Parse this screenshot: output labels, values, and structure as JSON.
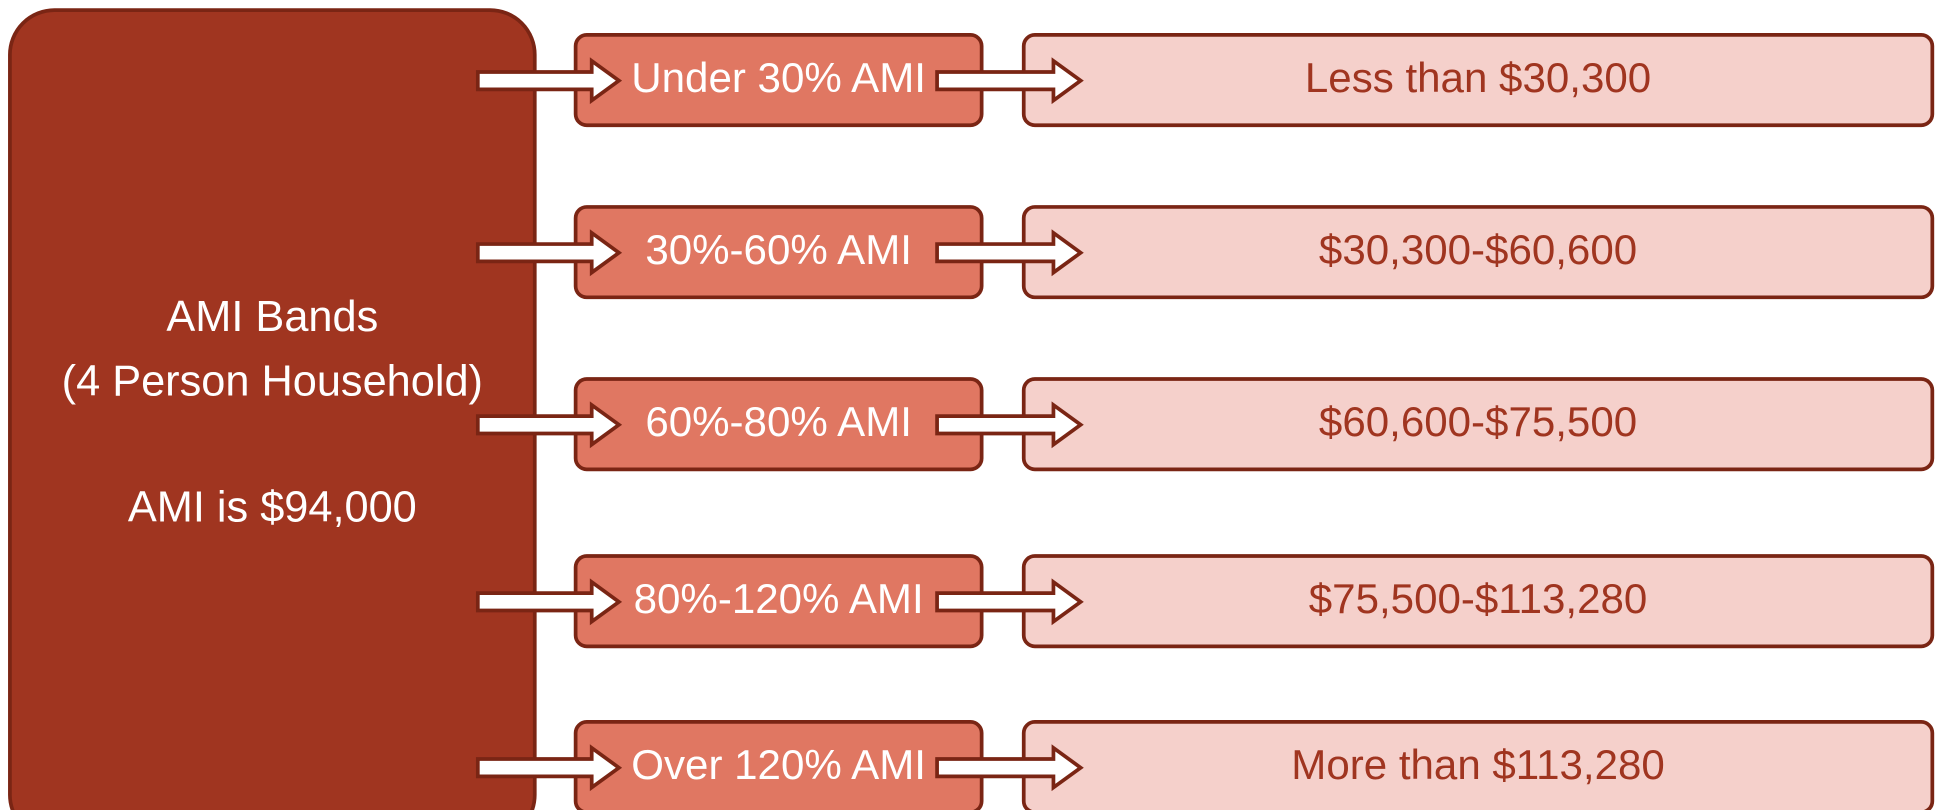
{
  "source": {
    "lines": [
      "AMI Bands",
      "(4 Person Household)",
      "AMI is $94,000"
    ]
  },
  "bands": [
    {
      "label": "Under 30% AMI",
      "range": "Less than $30,300"
    },
    {
      "label": "30%-60% AMI",
      "range": "$30,300-$60,600"
    },
    {
      "label": "60%-80% AMI",
      "range": "$60,600-$75,500"
    },
    {
      "label": "80%-120% AMI",
      "range": "$75,500-$113,280"
    },
    {
      "label": "Over 120% AMI",
      "range": "More than $113,280"
    }
  ]
}
